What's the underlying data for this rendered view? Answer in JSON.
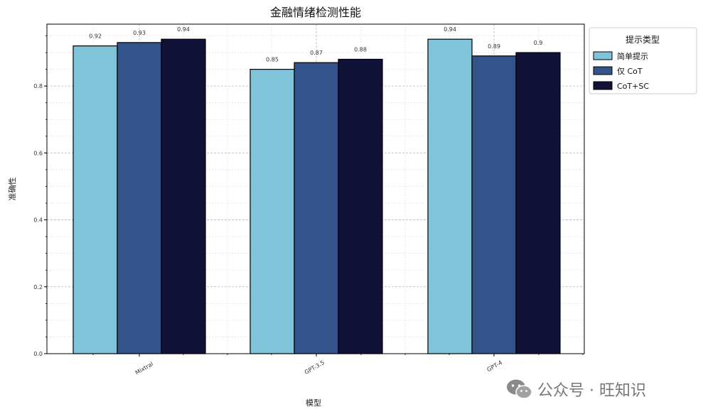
{
  "chart_data": {
    "type": "bar",
    "title": "金融情绪检测性能",
    "xlabel": "模型",
    "ylabel": "准确性",
    "categories": [
      "Mixtral",
      "GPT-3.5",
      "GPT-4"
    ],
    "series": [
      {
        "name": "简单提示",
        "values": [
          0.92,
          0.85,
          0.94
        ],
        "labels": [
          "0.92",
          "0.85",
          "0.94"
        ],
        "color": "#7fc4d8"
      },
      {
        "name": "仅 CoT",
        "values": [
          0.93,
          0.87,
          0.89
        ],
        "labels": [
          "0.93",
          "0.87",
          "0.89"
        ],
        "color": "#34538a"
      },
      {
        "name": "CoT+SC",
        "values": [
          0.94,
          0.88,
          0.9
        ],
        "labels": [
          "0.94",
          "0.88",
          "0.9"
        ],
        "color": "#111238"
      }
    ],
    "ylim": [
      0,
      0.985
    ],
    "yticks": [
      "0.0",
      "0.2",
      "0.4",
      "0.6",
      "0.8"
    ],
    "legend_title": "提示类型",
    "legend_position": "top-right",
    "grid": true
  },
  "watermark": {
    "text": "公众号 · 旺知识",
    "icon": "wechat-icon"
  }
}
